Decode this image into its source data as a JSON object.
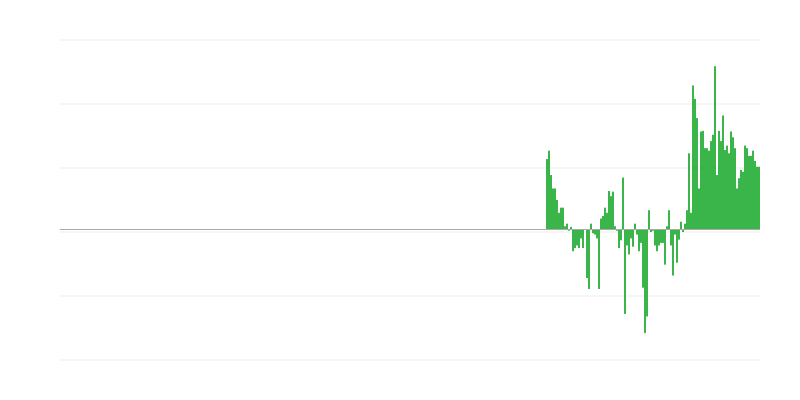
{
  "chart_data": {
    "type": "bar",
    "title": "",
    "xlabel": "",
    "ylabel": "",
    "grid": true,
    "legend": "none",
    "bar_color": "#39b54a",
    "baseline_color": "#aaaaaa",
    "grid_color": "#eeeeee",
    "xlim": [
      0,
      350
    ],
    "ylim": [
      -2.04,
      2.96
    ],
    "gridlines": [
      -2,
      -1,
      0,
      1,
      2,
      3
    ],
    "x_start": 243,
    "values": [
      1.1,
      1.23,
      0.85,
      0.64,
      0.64,
      0.46,
      0.26,
      0.34,
      0.34,
      0.05,
      0.09,
      -0.02,
      0.04,
      -0.34,
      -0.29,
      -0.25,
      -0.29,
      -0.14,
      -0.29,
      0,
      -0.76,
      -0.93,
      0.09,
      -0.06,
      -0.08,
      -0.14,
      -0.93,
      0.17,
      0.21,
      0.34,
      0.26,
      0.6,
      0.52,
      0.59,
      0.05,
      -0.02,
      -0.29,
      -0.17,
      0.81,
      -1.32,
      -0.25,
      -0.39,
      -0.14,
      -0.27,
      0.09,
      -0.08,
      -0.34,
      -0.21,
      -0.91,
      -1.62,
      -1.36,
      0.3,
      -0.04,
      -0.02,
      -0.25,
      -0.34,
      -0.25,
      -0.21,
      -0.21,
      -0.55,
      0.05,
      0.3,
      -0.25,
      -0.72,
      -0.08,
      -0.52,
      -0.16,
      0.12,
      -0.04,
      0.09,
      0.3,
      1.19,
      0.26,
      2.25,
      2.04,
      1.74,
      0.64,
      1.53,
      1.54,
      1.27,
      1.27,
      1.23,
      1.38,
      1.48,
      2.55,
      0.85,
      1.54,
      1.38,
      1.78,
      1.24,
      1.31,
      1.19,
      1.53,
      1.44,
      1.27,
      0.64,
      0.8,
      0.93,
      0.9,
      1.31,
      1.27,
      1.15,
      1.15,
      1.23,
      1.07,
      0.98,
      0.98
    ]
  }
}
